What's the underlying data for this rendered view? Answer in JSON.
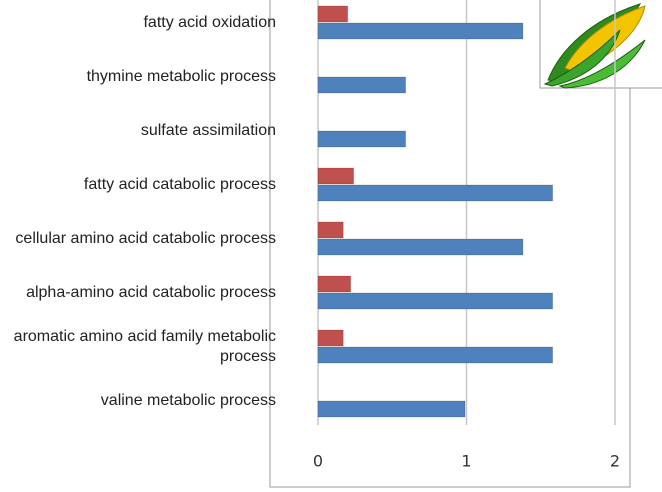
{
  "chart_data": {
    "type": "bar",
    "orientation": "horizontal",
    "categories": [
      "fatty acid oxidation",
      "thymine metabolic process",
      "sulfate assimilation",
      "fatty acid catabolic process",
      "cellular amino acid catabolic process",
      "alpha-amino acid catabolic process",
      "aromatic amino acid family metabolic process",
      "valine metabolic process"
    ],
    "series": [
      {
        "color": "#c0504d",
        "values": [
          0.2,
          null,
          null,
          0.24,
          0.17,
          0.22,
          0.17,
          null
        ]
      },
      {
        "color": "#4f81bd",
        "values": [
          1.38,
          0.59,
          0.59,
          1.58,
          1.38,
          1.58,
          1.58,
          0.99
        ]
      }
    ],
    "xlim": [
      0,
      2
    ],
    "xticks": [
      0,
      1,
      2
    ],
    "grid": true
  }
}
